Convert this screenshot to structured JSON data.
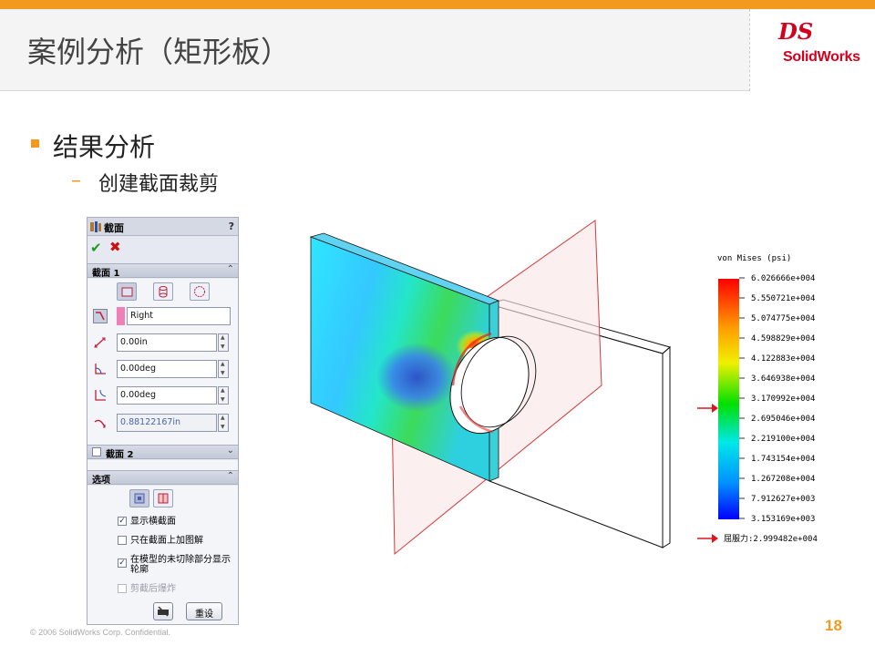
{
  "slide": {
    "title": "案例分析（矩形板）",
    "bullet": "结果分析",
    "sub_bullet": "创建截面裁剪",
    "dash": "–",
    "footer": "© 2006 SolidWorks Corp. Confidential.",
    "page_number": "18",
    "accent_color": "#f39a1e"
  },
  "logo": {
    "mark": "DS",
    "text": "SolidWorks"
  },
  "panel": {
    "title": "截面",
    "help": "?",
    "section1": {
      "label": "截面 1",
      "plane_value": "Right",
      "offset_value": "0.00in",
      "angle_x_value": "0.00deg",
      "angle_y_value": "0.00deg",
      "depth_value": "0.88122167in"
    },
    "section2": {
      "label": "截面 2",
      "checked": false
    },
    "options": {
      "label": "选项",
      "items": [
        {
          "label": "显示横截面",
          "checked": true,
          "enabled": true
        },
        {
          "label": "只在截面上加图解",
          "checked": false,
          "enabled": true
        },
        {
          "label": "在模型的未切除部分显示轮廓",
          "checked": true,
          "enabled": true
        },
        {
          "label": "剪截后爆炸",
          "checked": false,
          "enabled": false
        }
      ],
      "reset_label": "重设"
    }
  },
  "legend": {
    "title": "von Mises (psi)",
    "values": [
      "6.026666e+004",
      "5.550721e+004",
      "5.074775e+004",
      "4.598829e+004",
      "4.122883e+004",
      "3.646938e+004",
      "3.170992e+004",
      "2.695046e+004",
      "2.219100e+004",
      "1.743154e+004",
      "1.267208e+004",
      "7.912627e+003",
      "3.153169e+003"
    ],
    "yield_label": "屈服力:2.999482e+004",
    "arrow_color": "#e0141a"
  },
  "icons": {
    "ok": "check-icon",
    "cancel": "close-icon",
    "section_panel": "section-view-icon"
  }
}
